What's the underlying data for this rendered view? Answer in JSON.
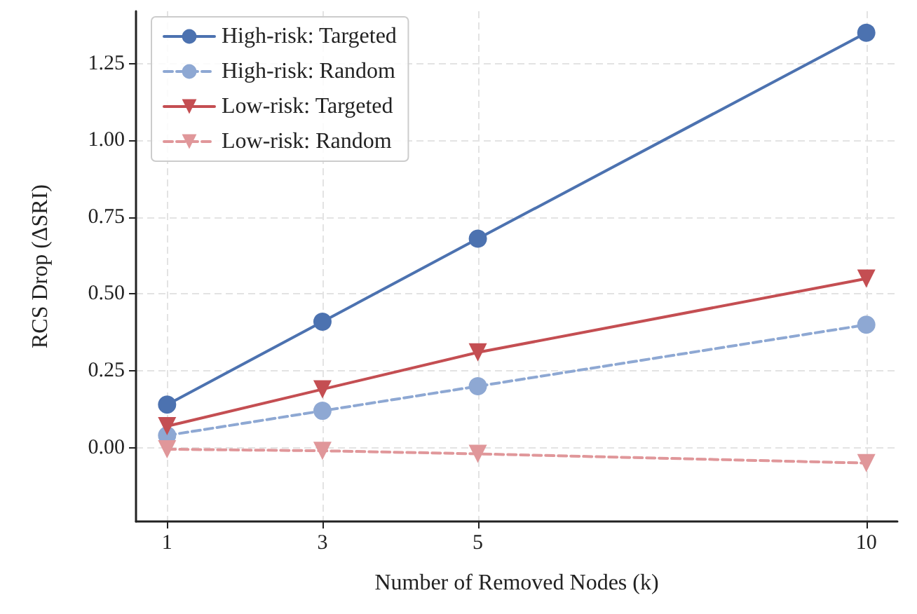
{
  "chart_data": {
    "type": "line",
    "xlabel": "Number of Removed Nodes (k)",
    "ylabel": "RCS Drop (ΔSRI)",
    "x": [
      1,
      3,
      5,
      10
    ],
    "series": [
      {
        "name": "High-risk: Targeted",
        "color": "#4c72b0",
        "values": [
          0.14,
          0.41,
          0.68,
          1.35
        ],
        "marker": "circle",
        "line_style": "solid"
      },
      {
        "name": "High-risk: Random",
        "color": "#8ea8d3",
        "values": [
          0.04,
          0.12,
          0.2,
          0.4
        ],
        "marker": "circle",
        "line_style": "dashed"
      },
      {
        "name": "Low-risk: Targeted",
        "color": "#c44e52",
        "values": [
          0.07,
          0.19,
          0.31,
          0.55
        ],
        "marker": "triangle",
        "line_style": "solid"
      },
      {
        "name": "Low-risk: Random",
        "color": "#e0979a",
        "values": [
          -0.005,
          -0.01,
          -0.02,
          -0.05
        ],
        "marker": "triangle",
        "line_style": "dashed"
      }
    ],
    "xlim": [
      0.6,
      10.4
    ],
    "xticks": [
      1,
      3,
      5,
      10
    ],
    "ylim": [
      -0.24,
      1.42
    ],
    "yticks": [
      {
        "value": 0,
        "label": "0.00"
      },
      {
        "value": 0.25,
        "label": "0.25"
      },
      {
        "value": 0.5,
        "label": "0.50"
      },
      {
        "value": 0.75,
        "label": "0.75"
      },
      {
        "value": 1,
        "label": "1.00"
      },
      {
        "value": 1.25,
        "label": "1.25"
      }
    ],
    "grid": true,
    "legend": "top left"
  }
}
